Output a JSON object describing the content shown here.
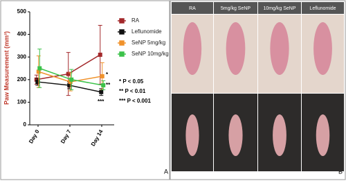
{
  "chart_data": {
    "type": "line",
    "y_label": "Paw Measurement (mm³)",
    "categories": [
      "Day 0",
      "Day 7",
      "Day 14"
    ],
    "series": [
      {
        "name": "RA",
        "color": "#a3282b",
        "values": [
          200,
          225,
          310
        ],
        "errors": [
          20,
          95,
          130
        ]
      },
      {
        "name": "Leflunomide",
        "color": "#111111",
        "values": [
          190,
          175,
          145
        ],
        "errors": [
          15,
          15,
          15
        ]
      },
      {
        "name": "SeNP 5mg/kg",
        "color": "#f0922b",
        "values": [
          235,
          190,
          215
        ],
        "errors": [
          70,
          40,
          60
        ]
      },
      {
        "name": "SeNP 10mg/kg",
        "color": "#3cc24a",
        "values": [
          250,
          200,
          175
        ],
        "errors": [
          85,
          45,
          20
        ]
      }
    ],
    "ylim": [
      0,
      500
    ],
    "yticks": [
      0,
      100,
      200,
      300,
      400,
      500
    ],
    "annotations": [
      "*",
      "**",
      "***"
    ],
    "significance": [
      "* P <  0.05",
      "** P < 0.01",
      "*** P < 0.001"
    ],
    "panel_label": "A"
  },
  "panel_b": {
    "columns": [
      "RA",
      "5mg/kg SeNP",
      "10mg/kg SeNP",
      "Leflunomide"
    ],
    "panel_label": "B"
  }
}
